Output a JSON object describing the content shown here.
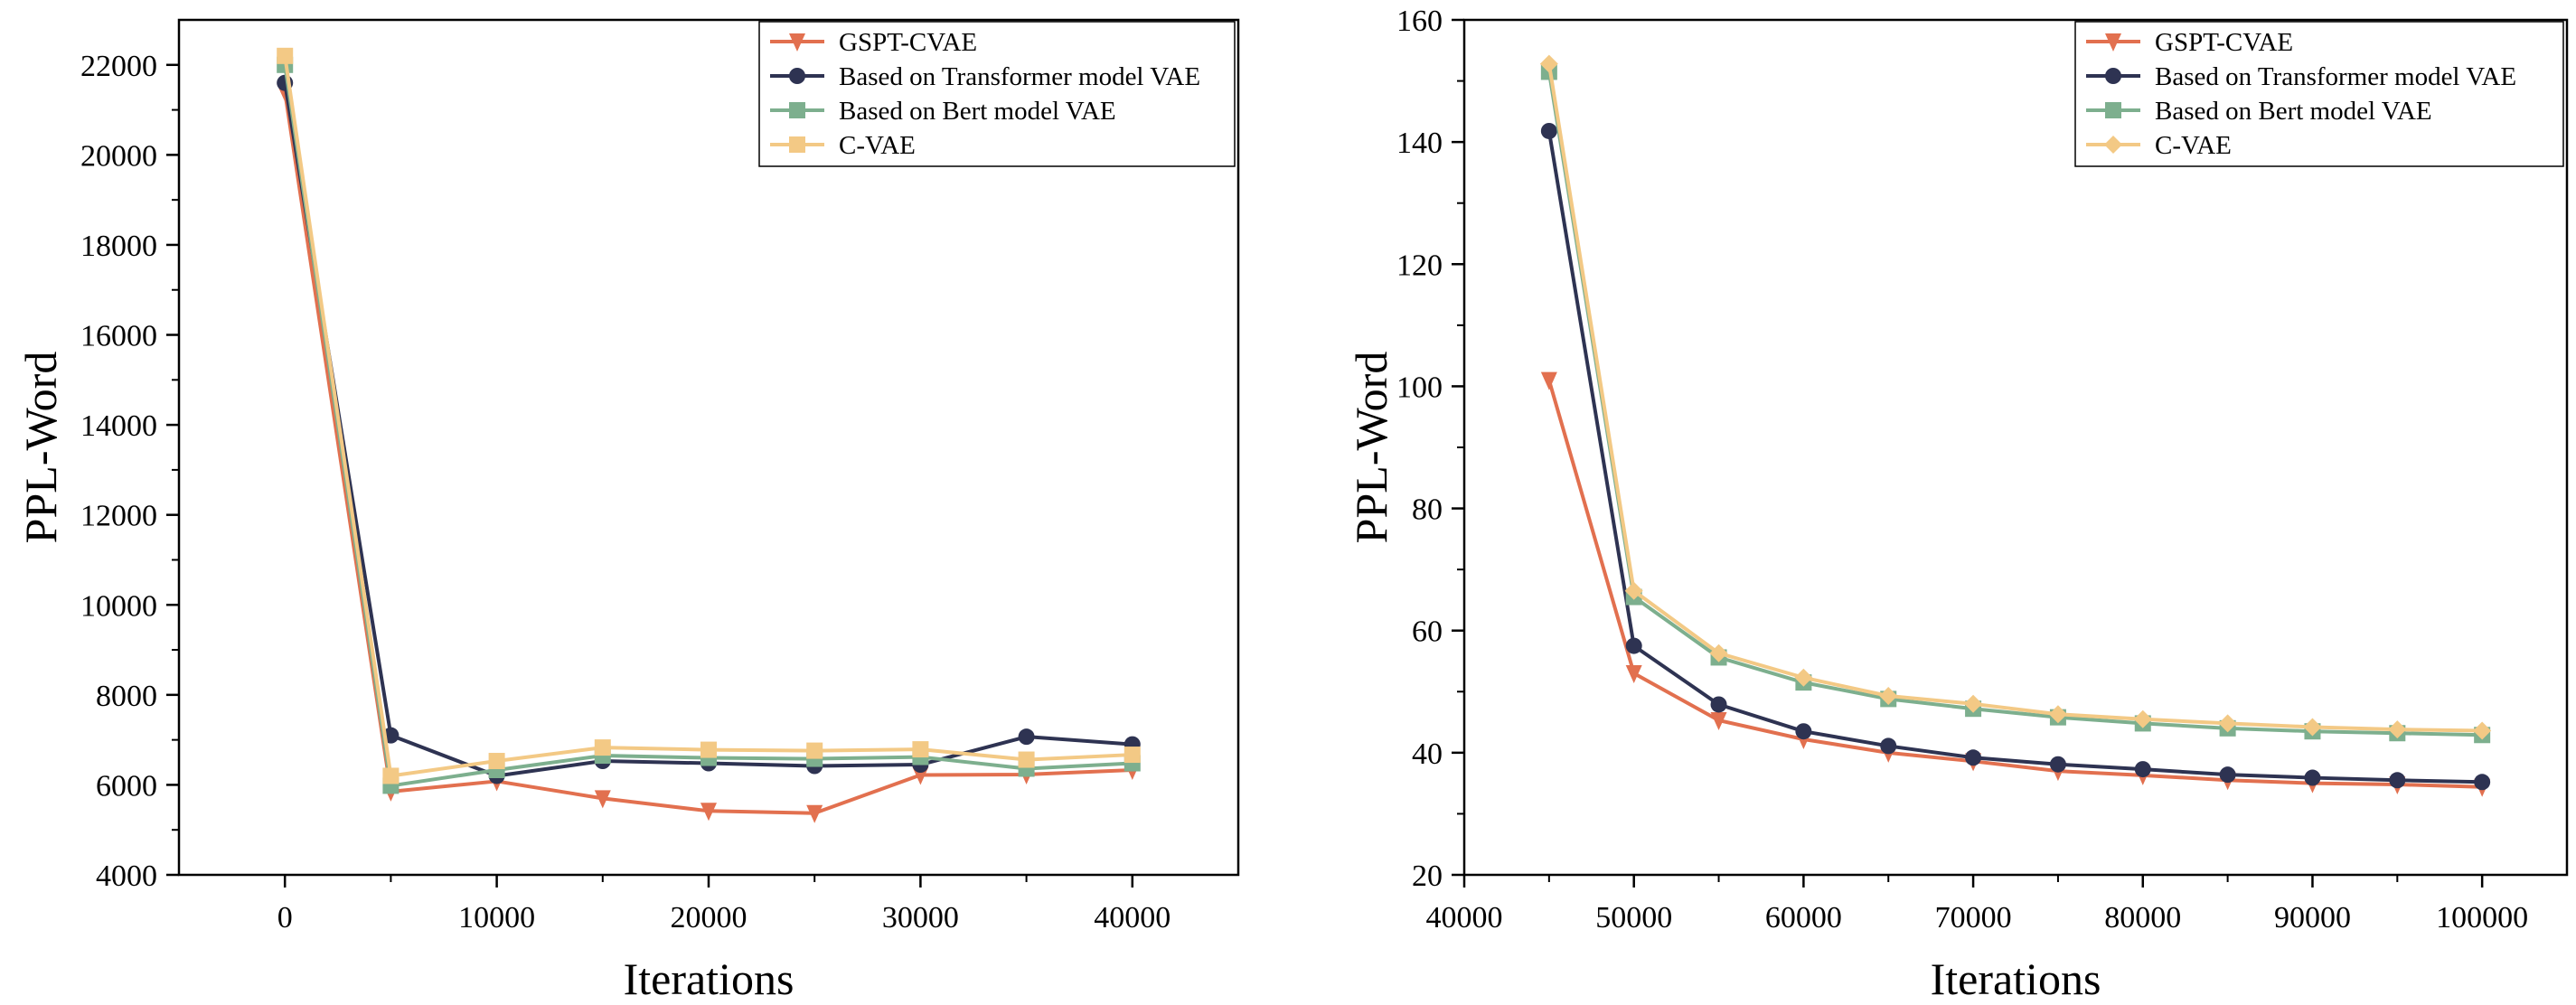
{
  "chart_data": [
    {
      "type": "line",
      "xlabel": "Iterations",
      "ylabel": "PPL-Word",
      "xlim": [
        -5000,
        45000
      ],
      "ylim": [
        4000,
        23000
      ],
      "xticks": [
        0,
        10000,
        20000,
        30000,
        40000
      ],
      "yticks": [
        4000,
        6000,
        8000,
        10000,
        12000,
        14000,
        16000,
        18000,
        20000,
        22000
      ],
      "xtick_labels": [
        "0",
        "10000",
        "20000",
        "30000",
        "40000"
      ],
      "ytick_labels": [
        "4000",
        "6000",
        "8000",
        "10000",
        "12000",
        "14000",
        "16000",
        "18000",
        "20000",
        "22000"
      ],
      "legend_position": "top-right",
      "series": [
        {
          "name": "GSPT-CVAE",
          "color": "#e2704f",
          "marker": "triangle-down",
          "x": [
            0,
            5000,
            10000,
            15000,
            20000,
            25000,
            30000,
            35000,
            40000
          ],
          "y": [
            21400,
            5850,
            6080,
            5700,
            5420,
            5370,
            6220,
            6230,
            6330
          ]
        },
        {
          "name": "Based on Transformer model VAE",
          "color": "#2e3352",
          "marker": "circle",
          "x": [
            0,
            5000,
            10000,
            15000,
            20000,
            25000,
            30000,
            35000,
            40000
          ],
          "y": [
            21600,
            7100,
            6200,
            6530,
            6480,
            6420,
            6450,
            7070,
            6900
          ]
        },
        {
          "name": "Based on Bert model VAE",
          "color": "#7daf8e",
          "marker": "square",
          "x": [
            0,
            5000,
            10000,
            15000,
            20000,
            25000,
            30000,
            35000,
            40000
          ],
          "y": [
            22000,
            5980,
            6330,
            6650,
            6600,
            6580,
            6620,
            6360,
            6480
          ]
        },
        {
          "name": "C-VAE",
          "color": "#f3c985",
          "marker": "square",
          "x": [
            0,
            5000,
            10000,
            15000,
            20000,
            25000,
            30000,
            35000,
            40000
          ],
          "y": [
            22200,
            6200,
            6530,
            6830,
            6780,
            6760,
            6790,
            6560,
            6670
          ]
        }
      ]
    },
    {
      "type": "line",
      "xlabel": "Iterations",
      "ylabel": "PPL-Word",
      "xlim": [
        40000,
        105000
      ],
      "ylim": [
        20,
        160
      ],
      "xticks": [
        40000,
        50000,
        60000,
        70000,
        80000,
        90000,
        100000
      ],
      "yticks": [
        20,
        40,
        60,
        80,
        100,
        120,
        140,
        160
      ],
      "xtick_labels": [
        "40000",
        "50000",
        "60000",
        "70000",
        "80000",
        "90000",
        "100000"
      ],
      "ytick_labels": [
        "20",
        "40",
        "60",
        "80",
        "100",
        "120",
        "140",
        "160"
      ],
      "legend_position": "top-right",
      "series": [
        {
          "name": "GSPT-CVAE",
          "color": "#e2704f",
          "marker": "triangle-down",
          "x": [
            45000,
            50000,
            55000,
            60000,
            65000,
            70000,
            75000,
            80000,
            85000,
            90000,
            95000,
            100000
          ],
          "y": [
            101,
            53,
            45.3,
            42.2,
            40,
            38.6,
            37,
            36.3,
            35.5,
            35,
            34.8,
            34.4
          ]
        },
        {
          "name": "Based on Transformer model VAE",
          "color": "#2e3352",
          "marker": "circle",
          "x": [
            45000,
            50000,
            55000,
            60000,
            65000,
            70000,
            75000,
            80000,
            85000,
            90000,
            95000,
            100000
          ],
          "y": [
            141.8,
            57.5,
            47.9,
            43.5,
            41.1,
            39.2,
            38.1,
            37.3,
            36.4,
            35.9,
            35.5,
            35.2
          ]
        },
        {
          "name": "Based on Bert model VAE",
          "color": "#7daf8e",
          "marker": "square",
          "x": [
            45000,
            50000,
            55000,
            60000,
            65000,
            70000,
            75000,
            80000,
            85000,
            90000,
            95000,
            100000
          ],
          "y": [
            151.5,
            65.5,
            55.6,
            51.5,
            48.8,
            47.2,
            45.8,
            44.8,
            44,
            43.5,
            43.2,
            42.9
          ]
        },
        {
          "name": "C-VAE",
          "color": "#f3c985",
          "marker": "diamond",
          "x": [
            45000,
            50000,
            55000,
            60000,
            65000,
            70000,
            75000,
            80000,
            85000,
            90000,
            95000,
            100000
          ],
          "y": [
            152.8,
            66.5,
            56.3,
            52.3,
            49.3,
            48,
            46.3,
            45.5,
            44.8,
            44.2,
            43.8,
            43.6
          ]
        }
      ]
    }
  ]
}
